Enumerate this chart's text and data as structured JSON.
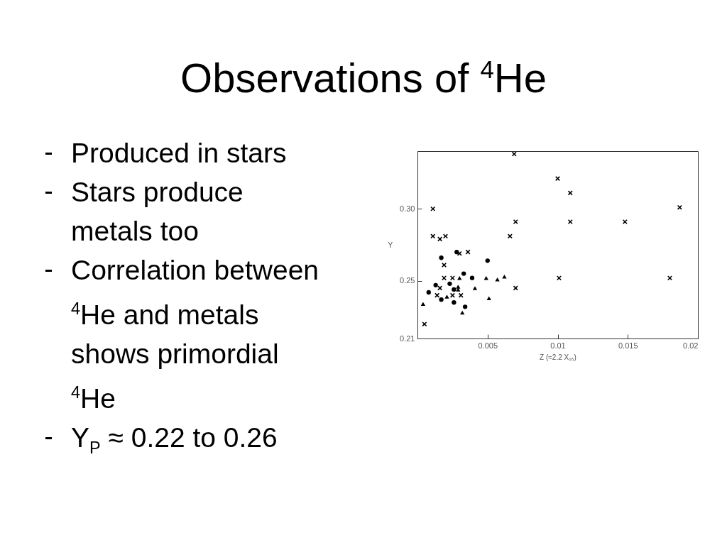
{
  "chart_data": {
    "type": "scatter",
    "title": "Observations of $^{4}$He",
    "annotations": [
      "Produced in stars",
      "Stars produce metals too",
      "Correlation between $^{4}$He and metals shows primordial $^{4}$He",
      "Y$_{P}$ ≈ 0.22 to 0.26"
    ],
    "xlabel": "Z (≈2.2 X₁₆)",
    "ylabel": "Y",
    "xlim": [
      0,
      0.02
    ],
    "xticks": [
      0.005,
      0.01,
      0.015,
      0.02
    ],
    "ylim": [
      0.21,
      0.34
    ],
    "yticks": [
      0.21,
      0.25,
      {
        "value": 0.3,
        "label": "0.30"
      }
    ],
    "series": [
      {
        "color": "#000000",
        "marker": "cross",
        "x": [
          0.0069,
          0.0011,
          0.007,
          0.0011,
          0.0016,
          0.002,
          0.0066,
          0.003,
          0.0036,
          0.0019,
          0.0019,
          0.0025,
          0.0016,
          0.0014,
          0.0025,
          0.0031,
          0.007,
          0.0005,
          0.01,
          0.0109,
          0.0187,
          0.0109,
          0.0148,
          0.0101,
          0.018
        ],
        "values": [
          0.338,
          0.3,
          0.291,
          0.281,
          0.279,
          0.281,
          0.281,
          0.269,
          0.27,
          0.261,
          0.252,
          0.252,
          0.245,
          0.24,
          0.24,
          0.24,
          0.245,
          0.22,
          0.321,
          0.311,
          0.301,
          0.291,
          0.291,
          0.252,
          0.252
        ]
      },
      {
        "color": "#000000",
        "marker": "circle",
        "x": [
          0.0017,
          0.0028,
          0.005,
          0.0033,
          0.0039,
          0.0013,
          0.0023,
          0.0026,
          0.0008,
          0.0017,
          0.0026,
          0.0034
        ],
        "values": [
          0.266,
          0.27,
          0.264,
          0.255,
          0.252,
          0.247,
          0.248,
          0.244,
          0.242,
          0.237,
          0.235,
          0.232
        ]
      },
      {
        "color": "#000000",
        "marker": "triangle",
        "x": [
          0.003,
          0.0049,
          0.0057,
          0.0062,
          0.0029,
          0.0041,
          0.0029,
          0.0021,
          0.0051,
          0.0004,
          0.0032
        ],
        "values": [
          0.252,
          0.252,
          0.251,
          0.253,
          0.246,
          0.245,
          0.244,
          0.239,
          0.238,
          0.234,
          0.228
        ]
      }
    ]
  }
}
